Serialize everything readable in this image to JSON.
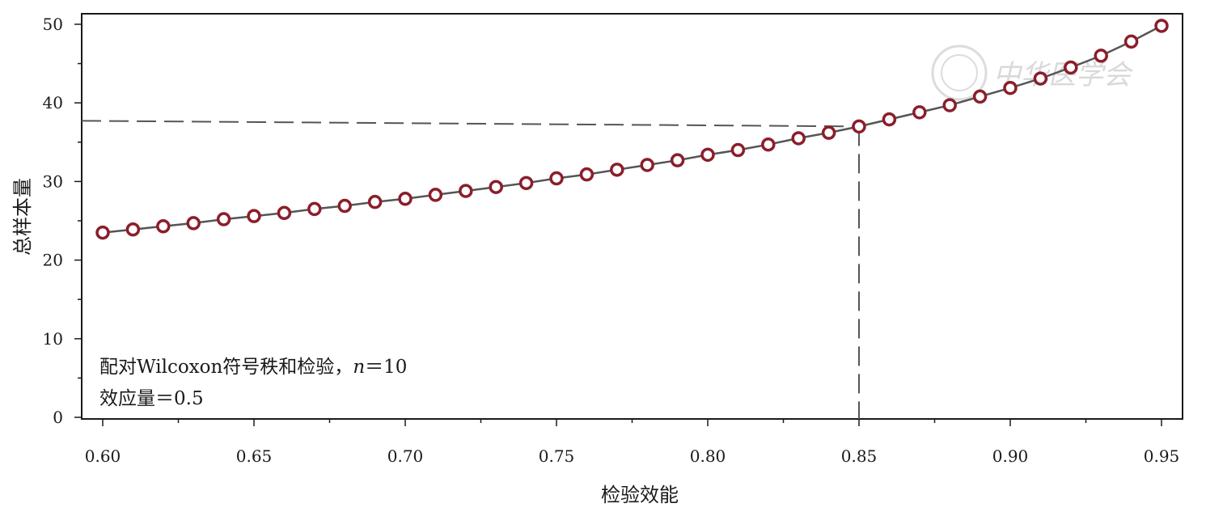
{
  "chart_data": {
    "type": "line",
    "xlabel": "检验效能",
    "ylabel": "总样本量",
    "xlim": [
      0.6,
      0.95
    ],
    "ylim": [
      0,
      50
    ],
    "x_ticks": [
      "0.60",
      "0.65",
      "0.70",
      "0.75",
      "0.80",
      "0.85",
      "0.90",
      "0.95"
    ],
    "y_ticks": [
      "0",
      "10",
      "20",
      "30",
      "40",
      "50"
    ],
    "grid": false,
    "series": [
      {
        "x": [
          0.6,
          0.61,
          0.62,
          0.63,
          0.64,
          0.65,
          0.66,
          0.67,
          0.68,
          0.69,
          0.7,
          0.71,
          0.72,
          0.73,
          0.74,
          0.75,
          0.76,
          0.77,
          0.78,
          0.79,
          0.8,
          0.81,
          0.82,
          0.83,
          0.84,
          0.85,
          0.86,
          0.87,
          0.88,
          0.89,
          0.9,
          0.91,
          0.92,
          0.93,
          0.94,
          0.95
        ],
        "y": [
          23.5,
          23.9,
          24.3,
          24.7,
          25.2,
          25.6,
          26.0,
          26.5,
          26.9,
          27.4,
          27.8,
          28.3,
          28.8,
          29.3,
          29.8,
          30.4,
          30.9,
          31.5,
          32.1,
          32.7,
          33.4,
          34.0,
          34.7,
          35.5,
          36.2,
          37.0,
          37.9,
          38.8,
          39.7,
          40.8,
          41.9,
          43.1,
          44.5,
          46.0,
          47.8,
          49.8
        ],
        "line_color": "#555555",
        "marker_color": "#8b1e2b"
      }
    ],
    "reference_lines": {
      "power": 0.85,
      "sample_size": 37.0,
      "style": "dashed",
      "color": "#555555"
    },
    "annotations": {
      "line1": {
        "prefix": "配对Wilcoxon符号秩和检验，",
        "n_symbol": "n",
        "suffix": "＝10"
      },
      "line2": "效应量＝0.5"
    }
  },
  "watermark": {
    "text": "中华医学会",
    "color": "#d9d9d9"
  }
}
